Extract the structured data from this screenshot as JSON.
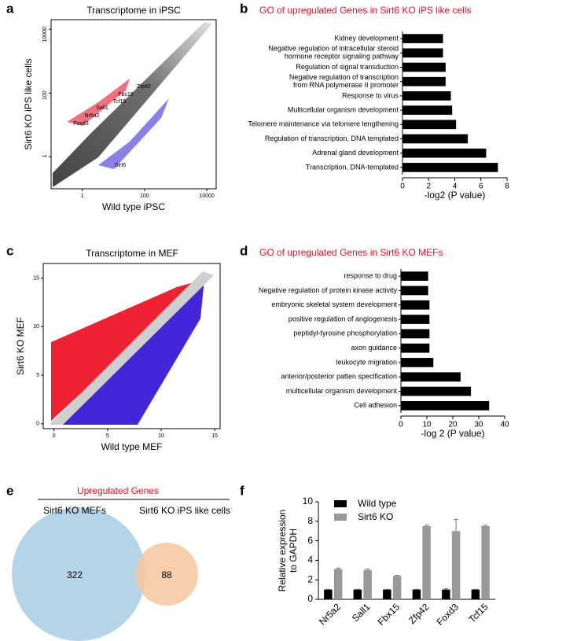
{
  "chart_data": [
    {
      "panel": "a",
      "type": "scatter",
      "title": "Transcriptome  in iPSC",
      "xlabel": "Wild type iPSC",
      "ylabel": "Sirt6 KO iPS like cells",
      "log_scale": true,
      "xlim": [
        0.1,
        20000
      ],
      "ylim": [
        0.1,
        20000
      ],
      "xticks": [
        1,
        100,
        10000
      ],
      "yticks": [
        1,
        100,
        10000
      ],
      "annotations": [
        "Zfp42",
        "Fbx15",
        "Tcf15",
        "Sall1",
        "Nr5a2",
        "Foxd3",
        "Sirt6"
      ]
    },
    {
      "panel": "b",
      "type": "barh",
      "title": "GO of upregulated Genes in Sirt6 KO iPS like cells",
      "xlabel": "-log2 (P value)",
      "color": "#000000",
      "categories": [
        "Kidney development",
        [
          "Negative regulation of intracellular steroid",
          "hormone receptor signaling pathway"
        ],
        "Regulation of signal transduction",
        [
          "Negative regulation of transcription",
          "from RNA polymerase II promoter"
        ],
        "Response to virus",
        "Multicellular organism development",
        "Telomere maintenance via telomere lengthening",
        "Regulation of transcription, DNA templated",
        "Adrenal gland development",
        "Transcription, DNA-templated"
      ],
      "values": [
        3.1,
        3.1,
        3.3,
        3.3,
        3.7,
        3.8,
        4.1,
        5.0,
        6.4,
        7.3
      ],
      "xlim": [
        0,
        8
      ],
      "xticks": [
        0,
        2,
        4,
        6,
        8
      ]
    },
    {
      "panel": "c",
      "type": "scatter",
      "title": "Transcriptome  in MEF",
      "xlabel": "Wild type MEF",
      "ylabel": "Sirt6 KO MEF",
      "log_scale": false,
      "xlim": [
        -1,
        15.5
      ],
      "ylim": [
        -0.5,
        16.5
      ],
      "xticks": [
        0,
        5,
        10,
        15
      ],
      "yticks": [
        0,
        5,
        10,
        15
      ]
    },
    {
      "panel": "d",
      "type": "barh",
      "title": "GO of upregulated Genes in Sirt6 KO MEFs",
      "xlabel": "-log 2 (P value)",
      "color": "#000000",
      "categories": [
        "response to drug",
        "Negative regulation of protein kinase activity",
        "embryonic skeletal system development",
        "positive regulation of angiogenesis",
        "peptidyl-tyrosine phosphorylation",
        "axon guidance",
        "leukocyte migration",
        "anterior/posterior patten specification",
        "multicellular organism development",
        "Cell adhesion"
      ],
      "values": [
        10.5,
        10.5,
        11,
        11,
        11,
        11,
        12.5,
        23,
        27,
        34
      ],
      "xlim": [
        0,
        40
      ],
      "xticks": [
        0,
        10,
        20,
        30,
        40
      ]
    },
    {
      "panel": "e",
      "type": "venn",
      "title": "Upregulated Genes",
      "sets": [
        {
          "name": "Sirt6 KO MEFs",
          "value": 322,
          "color": "#a9cce3"
        },
        {
          "name": "Sirt6 KO iPS like cells",
          "value": 88,
          "color": "#f7c59f"
        }
      ]
    },
    {
      "panel": "f",
      "type": "bar",
      "ylabel": [
        "Relative expression",
        "to GAPDH"
      ],
      "categories": [
        "Nr5a2",
        "Sall1",
        "Fbx15",
        "Zfp42",
        "Foxd3",
        "Tcf15"
      ],
      "series": [
        {
          "name": "Wild type",
          "color": "#000000",
          "values": [
            1,
            1,
            1,
            1,
            1,
            1
          ],
          "errors": [
            0.03,
            0.03,
            0.03,
            0.03,
            0.1,
            0.03
          ]
        },
        {
          "name": "Sirt6 KO",
          "color": "#999999",
          "values": [
            3.1,
            3.0,
            2.4,
            7.5,
            7.0,
            7.5
          ],
          "errors": [
            0.1,
            0.1,
            0.05,
            0.1,
            1.2,
            0.1
          ]
        }
      ],
      "ylim": [
        0,
        10
      ],
      "yticks": [
        0,
        2,
        4,
        6,
        8,
        10
      ]
    }
  ]
}
